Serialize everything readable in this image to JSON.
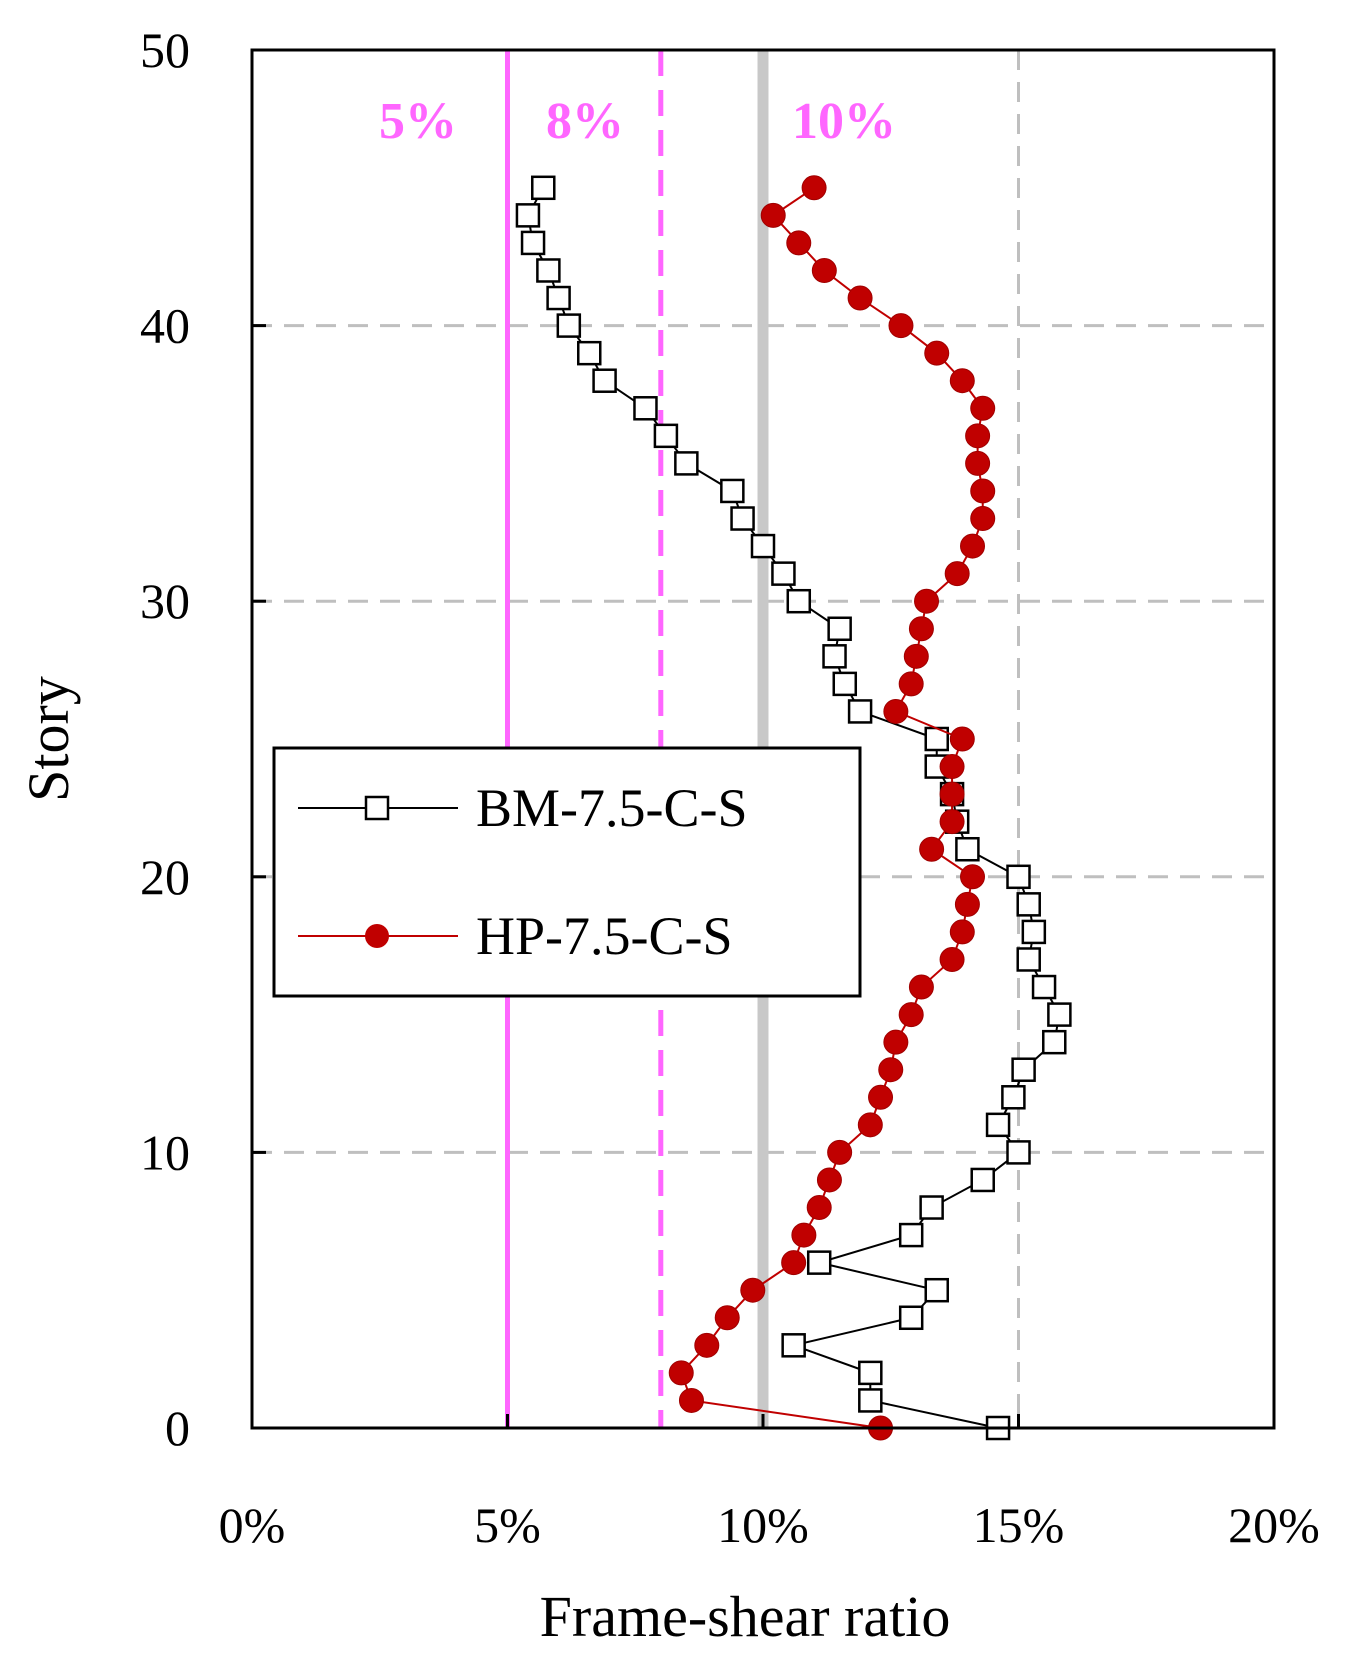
{
  "chart_data": {
    "type": "line",
    "xlabel": "Frame-shear ratio",
    "ylabel": "Story",
    "xlim": [
      0,
      20
    ],
    "ylim": [
      0,
      50
    ],
    "x_ticks": [
      "0%",
      "5%",
      "10%",
      "15%",
      "20%"
    ],
    "x_tick_values": [
      0,
      5,
      10,
      15,
      20
    ],
    "y_ticks": [
      "0",
      "10",
      "20",
      "30",
      "40",
      "50"
    ],
    "y_tick_values": [
      0,
      10,
      20,
      30,
      40,
      50
    ],
    "grid": {
      "vertical": [
        15
      ],
      "horizontal": [
        10,
        20,
        30,
        40
      ],
      "style": "dashed",
      "color": "#bfbfbf"
    },
    "legend_position": "middle-left",
    "reference_lines": [
      {
        "label": "5%",
        "x": 5,
        "style": "solid",
        "color": "#ff66ff"
      },
      {
        "label": "8%",
        "x": 8,
        "style": "dashed",
        "color": "#ff66ff"
      },
      {
        "label": "10%",
        "x": 10,
        "style": "solid",
        "color": "#c8c8c8"
      }
    ],
    "series": [
      {
        "name": "BM-7.5-C-S",
        "marker": "open-square",
        "color": "#000000",
        "points": [
          [
            14.6,
            0
          ],
          [
            12.1,
            1
          ],
          [
            12.1,
            2
          ],
          [
            10.6,
            3
          ],
          [
            12.9,
            4
          ],
          [
            13.4,
            5
          ],
          [
            11.1,
            6
          ],
          [
            12.9,
            7
          ],
          [
            13.3,
            8
          ],
          [
            14.3,
            9
          ],
          [
            15.0,
            10
          ],
          [
            14.6,
            11
          ],
          [
            14.9,
            12
          ],
          [
            15.1,
            13
          ],
          [
            15.7,
            14
          ],
          [
            15.8,
            15
          ],
          [
            15.5,
            16
          ],
          [
            15.2,
            17
          ],
          [
            15.3,
            18
          ],
          [
            15.2,
            19
          ],
          [
            15.0,
            20
          ],
          [
            14.0,
            21
          ],
          [
            13.8,
            22
          ],
          [
            13.7,
            23
          ],
          [
            13.4,
            24
          ],
          [
            13.4,
            25
          ],
          [
            11.9,
            26
          ],
          [
            11.6,
            27
          ],
          [
            11.4,
            28
          ],
          [
            11.5,
            29
          ],
          [
            10.7,
            30
          ],
          [
            10.4,
            31
          ],
          [
            10.0,
            32
          ],
          [
            9.6,
            33
          ],
          [
            9.4,
            34
          ],
          [
            8.5,
            35
          ],
          [
            8.1,
            36
          ],
          [
            7.7,
            37
          ],
          [
            6.9,
            38
          ],
          [
            6.6,
            39
          ],
          [
            6.2,
            40
          ],
          [
            6.0,
            41
          ],
          [
            5.8,
            42
          ],
          [
            5.5,
            43
          ],
          [
            5.4,
            44
          ],
          [
            5.7,
            45
          ]
        ]
      },
      {
        "name": "HP-7.5-C-S",
        "marker": "filled-circle",
        "color": "#c00000",
        "points": [
          [
            12.3,
            0
          ],
          [
            8.6,
            1
          ],
          [
            8.4,
            2
          ],
          [
            8.9,
            3
          ],
          [
            9.3,
            4
          ],
          [
            9.8,
            5
          ],
          [
            10.6,
            6
          ],
          [
            10.8,
            7
          ],
          [
            11.1,
            8
          ],
          [
            11.3,
            9
          ],
          [
            11.5,
            10
          ],
          [
            12.1,
            11
          ],
          [
            12.3,
            12
          ],
          [
            12.5,
            13
          ],
          [
            12.6,
            14
          ],
          [
            12.9,
            15
          ],
          [
            13.1,
            16
          ],
          [
            13.7,
            17
          ],
          [
            13.9,
            18
          ],
          [
            14.0,
            19
          ],
          [
            14.1,
            20
          ],
          [
            13.3,
            21
          ],
          [
            13.7,
            22
          ],
          [
            13.7,
            23
          ],
          [
            13.7,
            24
          ],
          [
            13.9,
            25
          ],
          [
            12.6,
            26
          ],
          [
            12.9,
            27
          ],
          [
            13.0,
            28
          ],
          [
            13.1,
            29
          ],
          [
            13.2,
            30
          ],
          [
            13.8,
            31
          ],
          [
            14.1,
            32
          ],
          [
            14.3,
            33
          ],
          [
            14.3,
            34
          ],
          [
            14.2,
            35
          ],
          [
            14.2,
            36
          ],
          [
            14.3,
            37
          ],
          [
            13.9,
            38
          ],
          [
            13.4,
            39
          ],
          [
            12.7,
            40
          ],
          [
            11.9,
            41
          ],
          [
            11.2,
            42
          ],
          [
            10.7,
            43
          ],
          [
            10.2,
            44
          ],
          [
            11.0,
            45
          ]
        ]
      }
    ]
  }
}
